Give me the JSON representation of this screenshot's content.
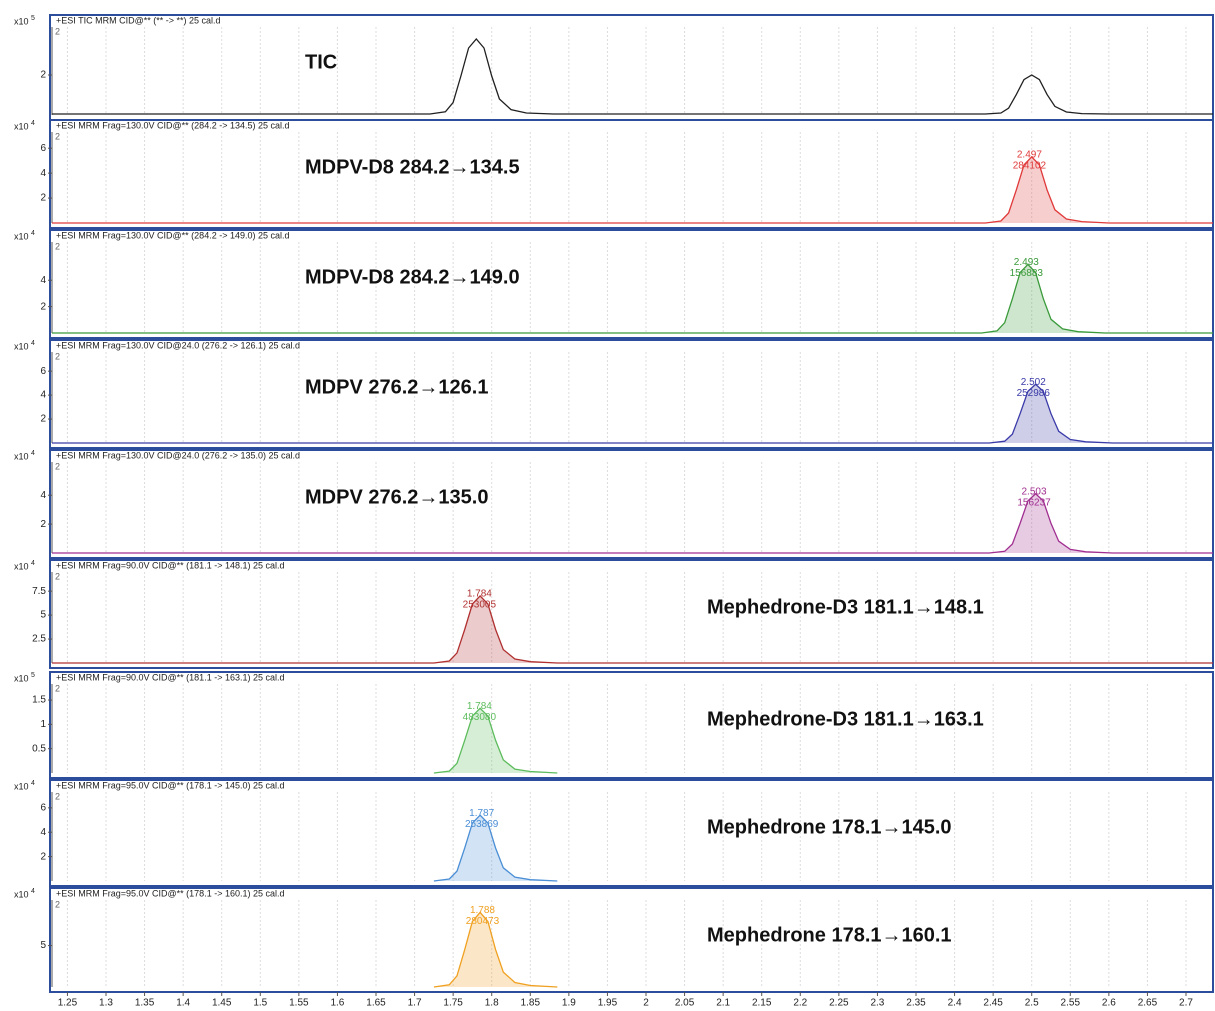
{
  "chart_data": [
    {
      "type": "line",
      "header": "+ESI TIC MRM CID@** (** -> **) 25 cal.d",
      "title": "TIC",
      "y_scale": {
        "base": "x10",
        "exponent": 5
      },
      "corner_label": "2",
      "area": false,
      "xlim": [
        1.23,
        2.735
      ],
      "ylim": [
        0,
        4.4
      ],
      "yticks": [
        2
      ],
      "series": [
        {
          "color": "#202020",
          "x": [
            1.23,
            1.72,
            1.74,
            1.75,
            1.76,
            1.77,
            1.78,
            1.79,
            1.8,
            1.81,
            1.825,
            1.845,
            1.88,
            2.44,
            2.46,
            2.47,
            2.48,
            2.49,
            2.5,
            2.51,
            2.52,
            2.53,
            2.545,
            2.565,
            2.6,
            2.735
          ],
          "values": [
            0.05,
            0.05,
            0.16,
            0.62,
            1.95,
            3.35,
            3.8,
            3.35,
            1.95,
            0.8,
            0.27,
            0.1,
            0.05,
            0.05,
            0.1,
            0.34,
            1.02,
            1.77,
            2.0,
            1.77,
            1.02,
            0.43,
            0.15,
            0.07,
            0.05,
            0.05
          ]
        }
      ]
    },
    {
      "type": "line",
      "header": "+ESI MRM Frag=130.0V CID@** (284.2 -> 134.5) 25 cal.d",
      "title": "MDPV-D8 284.2→134.5",
      "y_scale": {
        "base": "x10",
        "exponent": 4
      },
      "corner_label": "2",
      "area": true,
      "xlim": [
        1.23,
        2.735
      ],
      "ylim": [
        0,
        7.3
      ],
      "yticks": [
        2,
        4,
        6
      ],
      "peak_rt": 2.497,
      "peak_area": 284102,
      "series": [
        {
          "color": "#e03a3a",
          "x": [
            1.23,
            2.44,
            2.46,
            2.47,
            2.48,
            2.49,
            2.5,
            2.51,
            2.52,
            2.53,
            2.545,
            2.565,
            2.6,
            2.735
          ],
          "values": [
            0,
            0,
            0.16,
            0.8,
            2.65,
            4.66,
            5.3,
            4.66,
            2.65,
            1.06,
            0.32,
            0.11,
            0,
            0
          ]
        }
      ]
    },
    {
      "type": "line",
      "header": "+ESI MRM Frag=130.0V CID@** (284.2 -> 149.0) 25 cal.d",
      "title": "MDPV-D8 284.2→149.0",
      "y_scale": {
        "base": "x10",
        "exponent": 4
      },
      "corner_label": "2",
      "area": true,
      "xlim": [
        1.23,
        2.735
      ],
      "ylim": [
        0,
        6.9
      ],
      "yticks": [
        2,
        4
      ],
      "peak_rt": 2.493,
      "peak_area": 156883,
      "series": [
        {
          "color": "#3a9a3a",
          "x": [
            1.23,
            2.435,
            2.455,
            2.465,
            2.475,
            2.485,
            2.495,
            2.505,
            2.515,
            2.525,
            2.54,
            2.56,
            2.595,
            2.735
          ],
          "values": [
            0,
            0,
            0.16,
            0.78,
            2.6,
            4.58,
            5.2,
            4.58,
            2.6,
            1.04,
            0.31,
            0.1,
            0,
            0
          ]
        }
      ]
    },
    {
      "type": "line",
      "header": "+ESI MRM Frag=130.0V CID@24.0 (276.2 -> 126.1) 25 cal.d",
      "title": "MDPV 276.2→126.1",
      "y_scale": {
        "base": "x10",
        "exponent": 4
      },
      "corner_label": "2",
      "area": true,
      "xlim": [
        1.23,
        2.735
      ],
      "ylim": [
        0,
        7.6
      ],
      "yticks": [
        2,
        4,
        6
      ],
      "peak_rt": 2.502,
      "peak_area": 252986,
      "series": [
        {
          "color": "#3a3aa8",
          "x": [
            1.23,
            2.445,
            2.465,
            2.475,
            2.485,
            2.495,
            2.505,
            2.515,
            2.525,
            2.535,
            2.55,
            2.57,
            2.605,
            2.735
          ],
          "values": [
            0,
            0,
            0.15,
            0.74,
            2.45,
            4.31,
            4.9,
            4.31,
            2.45,
            0.98,
            0.29,
            0.1,
            0,
            0
          ]
        }
      ]
    },
    {
      "type": "line",
      "header": "+ESI MRM Frag=130.0V CID@24.0 (276.2 -> 135.0) 25 cal.d",
      "title": "MDPV 276.2→135.0",
      "y_scale": {
        "base": "x10",
        "exponent": 4
      },
      "corner_label": "2",
      "area": true,
      "xlim": [
        1.23,
        2.735
      ],
      "ylim": [
        0,
        6.3
      ],
      "yticks": [
        2,
        4
      ],
      "peak_rt": 2.503,
      "peak_area": 156237,
      "series": [
        {
          "color": "#a02e90",
          "x": [
            1.23,
            2.445,
            2.465,
            2.475,
            2.485,
            2.495,
            2.505,
            2.515,
            2.525,
            2.535,
            2.55,
            2.57,
            2.605,
            2.735
          ],
          "values": [
            0,
            0,
            0.12,
            0.62,
            2.05,
            3.61,
            4.1,
            3.61,
            2.05,
            0.82,
            0.25,
            0.08,
            0,
            0
          ]
        }
      ]
    },
    {
      "type": "line",
      "header": "+ESI MRM Frag=90.0V CID@** (181.1 -> 148.1) 25 cal.d",
      "title": "Mephedrone-D3 181.1→148.1",
      "y_scale": {
        "base": "x10",
        "exponent": 4
      },
      "corner_label": "2",
      "area": true,
      "xlim": [
        1.23,
        2.735
      ],
      "ylim": [
        0,
        9.5
      ],
      "yticks": [
        2.5,
        5,
        7.5
      ],
      "peak_rt": 1.784,
      "peak_area": 253005,
      "series": [
        {
          "color": "#b03030",
          "x": [
            1.23,
            1.725,
            1.745,
            1.755,
            1.765,
            1.775,
            1.785,
            1.795,
            1.805,
            1.815,
            1.83,
            1.85,
            1.885,
            2.735
          ],
          "values": [
            0,
            0,
            0.21,
            1.05,
            3.5,
            6.16,
            7,
            6.16,
            3.5,
            1.4,
            0.42,
            0.14,
            0,
            0
          ]
        }
      ]
    },
    {
      "type": "line",
      "header": "+ESI MRM Frag=90.0V CID@** (181.1 -> 163.1) 25 cal.d",
      "title": "Mephedrone-D3 181.1→163.1",
      "y_scale": {
        "base": "x10",
        "exponent": 5
      },
      "corner_label": "2",
      "area": true,
      "xlim": [
        1.23,
        2.735
      ],
      "ylim": [
        0,
        1.83
      ],
      "yticks": [
        0.5,
        1,
        1.5
      ],
      "peak_rt": 1.784,
      "peak_area": 483080,
      "series": [
        {
          "color": "#5cbc5c",
          "x": [
            1.725,
            1.745,
            1.755,
            1.765,
            1.775,
            1.785,
            1.795,
            1.805,
            1.815,
            1.83,
            1.85,
            1.885
          ],
          "values": [
            0,
            0.04,
            0.2,
            0.67,
            1.17,
            1.33,
            1.17,
            0.67,
            0.27,
            0.08,
            0.03,
            0
          ]
        }
      ]
    },
    {
      "type": "line",
      "header": "+ESI MRM Frag=95.0V CID@** (178.1 -> 145.0) 25 cal.d",
      "title": "Mephedrone 178.1→145.0",
      "y_scale": {
        "base": "x10",
        "exponent": 4
      },
      "corner_label": "2",
      "area": true,
      "xlim": [
        1.23,
        2.735
      ],
      "ylim": [
        0,
        7.3
      ],
      "yticks": [
        2,
        4,
        6
      ],
      "peak_rt": 1.787,
      "peak_area": 253869,
      "series": [
        {
          "color": "#4a8ed6",
          "x": [
            1.725,
            1.745,
            1.755,
            1.765,
            1.775,
            1.785,
            1.795,
            1.805,
            1.815,
            1.83,
            1.85,
            1.885
          ],
          "values": [
            0,
            0.16,
            0.81,
            2.7,
            4.75,
            5.4,
            4.75,
            2.7,
            1.08,
            0.32,
            0.11,
            0
          ]
        }
      ]
    },
    {
      "type": "line",
      "header": "+ESI MRM Frag=95.0V CID@** (178.1 -> 160.1) 25 cal.d",
      "title": "Mephedrone 178.1→160.1",
      "y_scale": {
        "base": "x10",
        "exponent": 4
      },
      "corner_label": "2",
      "area": true,
      "xlim": [
        1.23,
        2.735
      ],
      "ylim": [
        0,
        10.5
      ],
      "yticks": [
        5
      ],
      "peak_rt": 1.788,
      "peak_area": 280473,
      "xticks": [
        1.25,
        1.3,
        1.35,
        1.4,
        1.45,
        1.5,
        1.55,
        1.6,
        1.65,
        1.7,
        1.75,
        1.8,
        1.85,
        1.9,
        1.95,
        2,
        2.05,
        2.1,
        2.15,
        2.2,
        2.25,
        2.3,
        2.35,
        2.4,
        2.45,
        2.5,
        2.55,
        2.6,
        2.65,
        2.7
      ],
      "series": [
        {
          "color": "#f0a020",
          "x": [
            1.725,
            1.745,
            1.755,
            1.765,
            1.775,
            1.785,
            1.795,
            1.805,
            1.815,
            1.83,
            1.85,
            1.885
          ],
          "values": [
            0,
            0.27,
            1.35,
            4.5,
            7.92,
            9,
            7.92,
            4.5,
            1.8,
            0.54,
            0.18,
            0
          ]
        }
      ]
    }
  ]
}
